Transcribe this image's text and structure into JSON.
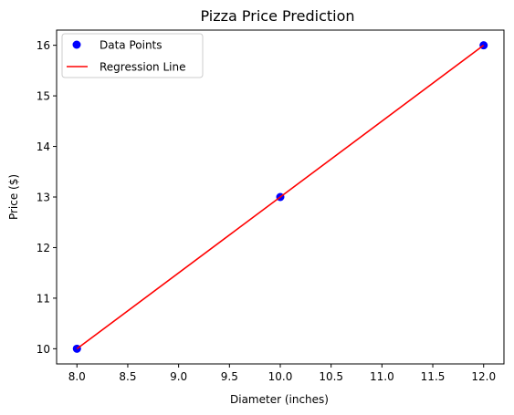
{
  "chart_data": {
    "type": "scatter",
    "title": "Pizza Price Prediction",
    "xlabel": "Diameter (inches)",
    "ylabel": "Price ($)",
    "xlim": [
      7.8,
      12.2
    ],
    "ylim": [
      9.7,
      16.3
    ],
    "x_ticks": [
      8.0,
      8.5,
      9.0,
      9.5,
      10.0,
      10.5,
      11.0,
      11.5,
      12.0
    ],
    "x_tick_labels": [
      "8.0",
      "8.5",
      "9.0",
      "9.5",
      "10.0",
      "10.5",
      "11.0",
      "11.5",
      "12.0"
    ],
    "y_ticks": [
      10,
      11,
      12,
      13,
      14,
      15,
      16
    ],
    "y_tick_labels": [
      "10",
      "11",
      "12",
      "13",
      "14",
      "15",
      "16"
    ],
    "grid": false,
    "legend_position": "top-left",
    "series": [
      {
        "name": "Data Points",
        "kind": "scatter",
        "color": "#0000ff",
        "points": [
          [
            8,
            10
          ],
          [
            10,
            13
          ],
          [
            12,
            16
          ]
        ]
      },
      {
        "name": "Regression Line",
        "kind": "line",
        "color": "#ff0000",
        "points": [
          [
            8,
            10
          ],
          [
            10,
            13
          ],
          [
            12,
            16
          ]
        ]
      }
    ]
  }
}
